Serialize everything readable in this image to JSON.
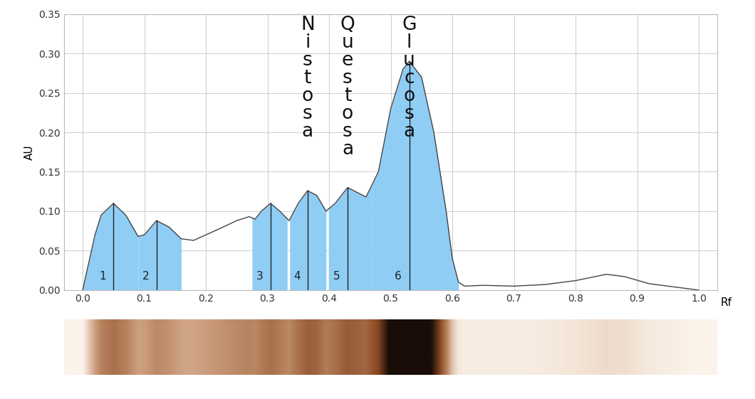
{
  "chart_data": {
    "type": "area",
    "x": [
      0.0,
      0.02,
      0.03,
      0.05,
      0.07,
      0.09,
      0.1,
      0.12,
      0.14,
      0.16,
      0.18,
      0.2,
      0.22,
      0.25,
      0.27,
      0.28,
      0.29,
      0.305,
      0.32,
      0.335,
      0.35,
      0.365,
      0.38,
      0.395,
      0.41,
      0.43,
      0.45,
      0.46,
      0.48,
      0.5,
      0.52,
      0.53,
      0.55,
      0.57,
      0.59,
      0.6,
      0.61,
      0.62,
      0.65,
      0.7,
      0.75,
      0.8,
      0.85,
      0.88,
      0.92,
      0.96,
      1.0
    ],
    "values": [
      0.0,
      0.07,
      0.095,
      0.11,
      0.095,
      0.068,
      0.07,
      0.088,
      0.08,
      0.065,
      0.063,
      0.07,
      0.077,
      0.088,
      0.093,
      0.09,
      0.1,
      0.11,
      0.1,
      0.088,
      0.11,
      0.126,
      0.12,
      0.1,
      0.11,
      0.13,
      0.122,
      0.118,
      0.15,
      0.23,
      0.28,
      0.29,
      0.27,
      0.2,
      0.1,
      0.04,
      0.01,
      0.005,
      0.006,
      0.005,
      0.007,
      0.012,
      0.02,
      0.017,
      0.008,
      0.004,
      0.0
    ],
    "color": "#8fcdf5",
    "x_label": "Rf",
    "y_label": "AU",
    "xlim": [
      -0.03,
      1.03
    ],
    "ylim": [
      0,
      0.35
    ],
    "xticks": [
      {
        "value": 0.0,
        "label": "0.0"
      },
      {
        "value": 0.1,
        "label": "0.1"
      },
      {
        "value": 0.2,
        "label": "0.2"
      },
      {
        "value": 0.3,
        "label": "0.3"
      },
      {
        "value": 0.4,
        "label": "0.4"
      },
      {
        "value": 0.5,
        "label": "0.5"
      },
      {
        "value": 0.6,
        "label": "0.6"
      },
      {
        "value": 0.7,
        "label": "0.7"
      },
      {
        "value": 0.8,
        "label": "0.8"
      },
      {
        "value": 0.9,
        "label": "0.9"
      },
      {
        "value": 1.0,
        "label": "1.0"
      }
    ],
    "yticks": [
      {
        "value": 0.0,
        "label": "0.00"
      },
      {
        "value": 0.05,
        "label": "0.05"
      },
      {
        "value": 0.1,
        "label": "0.10"
      },
      {
        "value": 0.15,
        "label": "0.15"
      },
      {
        "value": 0.2,
        "label": "0.20"
      },
      {
        "value": 0.25,
        "label": "0.25"
      },
      {
        "value": 0.3,
        "label": "0.30"
      },
      {
        "value": 0.35,
        "label": "0.35"
      }
    ],
    "grid": true,
    "peaks": [
      {
        "label": "1",
        "rf": 0.05,
        "start": 0.0,
        "end": 0.09
      },
      {
        "label": "2",
        "rf": 0.12,
        "start": 0.09,
        "end": 0.16
      },
      {
        "label": "3",
        "rf": 0.305,
        "start": 0.275,
        "end": 0.332
      },
      {
        "label": "4",
        "rf": 0.365,
        "start": 0.336,
        "end": 0.395,
        "name": "Nistosa"
      },
      {
        "label": "5",
        "rf": 0.43,
        "start": 0.399,
        "end": 0.47,
        "name": "Questosa"
      },
      {
        "label": "6",
        "rf": 0.53,
        "start": 0.47,
        "end": 0.61,
        "name": "Glucosa"
      }
    ]
  }
}
